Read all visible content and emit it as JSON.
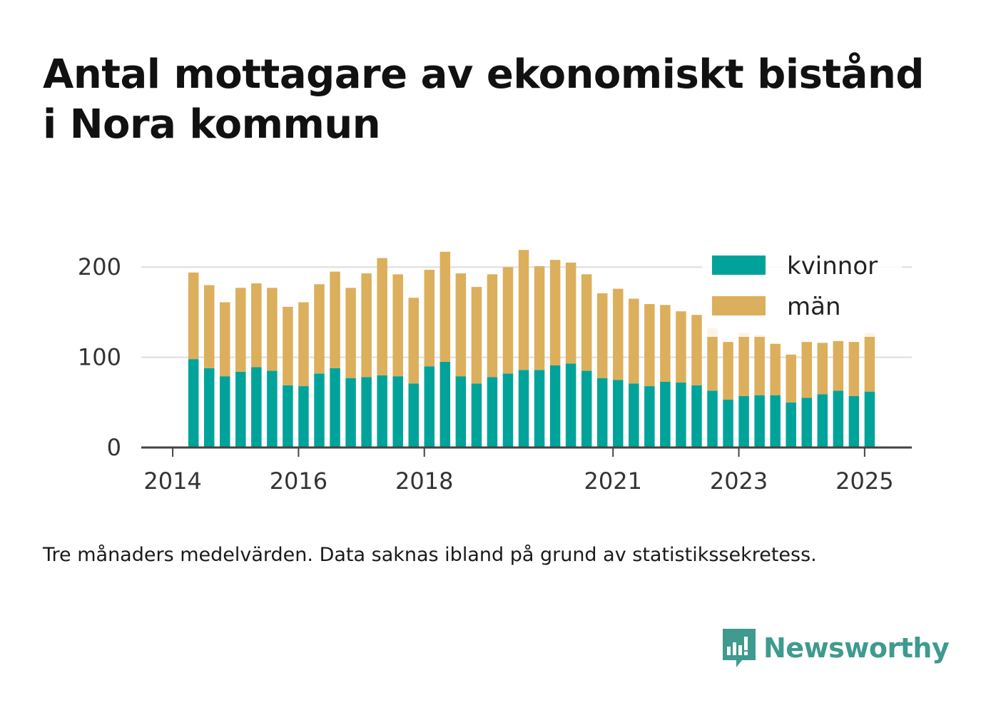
{
  "title": {
    "line1": "Antal mottagare av ekonomiskt bistånd",
    "line2": "i Nora kommun"
  },
  "note": "Tre månaders medelvärden. Data saknas ibland på grund av statistikssekretess.",
  "brand": {
    "name": "Newsworthy",
    "icon": "newsworthy-logo-icon"
  },
  "colors": {
    "kvinnor": "#00a39a",
    "man": "#dcaf5c",
    "grid": "#dddddd",
    "axis": "#444444"
  },
  "chart_data": {
    "type": "bar",
    "stacked": true,
    "y_ticks": [
      0,
      100,
      200
    ],
    "x_ticks": [
      {
        "label": "2014",
        "x": 2014.0
      },
      {
        "label": "2016",
        "x": 2016.0
      },
      {
        "label": "2018",
        "x": 2018.0
      },
      {
        "label": "2021",
        "x": 2021.0
      },
      {
        "label": "2023",
        "x": 2023.0
      },
      {
        "label": "2025",
        "x": 2025.0
      }
    ],
    "xlim": [
      2013.5,
      2025.75
    ],
    "ylim": [
      0,
      235
    ],
    "grid": true,
    "legend": "top-right",
    "x": [
      2014.33,
      2014.58,
      2014.83,
      2015.08,
      2015.33,
      2015.58,
      2015.83,
      2016.08,
      2016.33,
      2016.58,
      2016.83,
      2017.08,
      2017.33,
      2017.58,
      2017.83,
      2018.08,
      2018.33,
      2018.58,
      2018.83,
      2019.08,
      2019.33,
      2019.58,
      2019.83,
      2020.08,
      2020.33,
      2020.58,
      2020.83,
      2021.08,
      2021.33,
      2021.58,
      2021.83,
      2022.08,
      2022.33,
      2022.58,
      2022.83,
      2023.08,
      2023.33,
      2023.58,
      2023.83,
      2024.08,
      2024.33,
      2024.58,
      2024.83,
      2025.08
    ],
    "series": [
      {
        "name": "kvinnor",
        "values": [
          98,
          88,
          79,
          84,
          89,
          85,
          69,
          68,
          82,
          88,
          77,
          78,
          80,
          79,
          71,
          90,
          95,
          79,
          71,
          78,
          82,
          86,
          86,
          91,
          93,
          85,
          77,
          75,
          71,
          68,
          73,
          72,
          69,
          63,
          53,
          57,
          58,
          58,
          50,
          55,
          59,
          63,
          57,
          62
        ]
      },
      {
        "name": "män",
        "values": [
          96,
          92,
          82,
          93,
          93,
          92,
          87,
          93,
          99,
          107,
          100,
          115,
          130,
          113,
          95,
          107,
          122,
          114,
          107,
          114,
          118,
          133,
          115,
          117,
          112,
          107,
          94,
          101,
          94,
          91,
          85,
          79,
          78,
          69,
          64,
          70,
          67,
          57,
          53,
          62,
          57,
          55,
          60,
          65
        ]
      }
    ]
  }
}
